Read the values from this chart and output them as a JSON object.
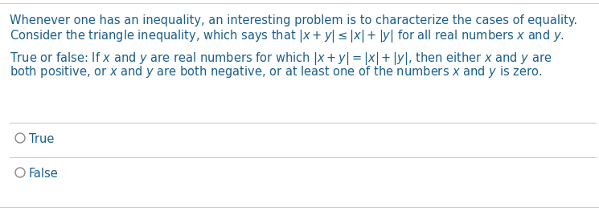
{
  "background_color": "#ffffff",
  "divider_color": "#cccccc",
  "text_color_blue": "#1b5e8a",
  "circle_color": "#888888",
  "line1": "Whenever one has an inequality, an interesting problem is to characterize the cases of equality.",
  "line2": "Consider the triangle inequality, which says that $|x+y| \\leq |x|+|y|$ for all real numbers $x$ and $y$.",
  "line3": "True or false: If $x$ and $y$ are real numbers for which $|x+y| = |x|+|y|$, then either $x$ and $y$ are",
  "line4": "both positive, or $x$ and $y$ are both negative, or at least one of the numbers $x$ and $y$ is zero.",
  "option1": "True",
  "option2": "False",
  "fontsize": 10.5,
  "fig_width": 7.45,
  "fig_height": 2.63,
  "dpi": 100
}
